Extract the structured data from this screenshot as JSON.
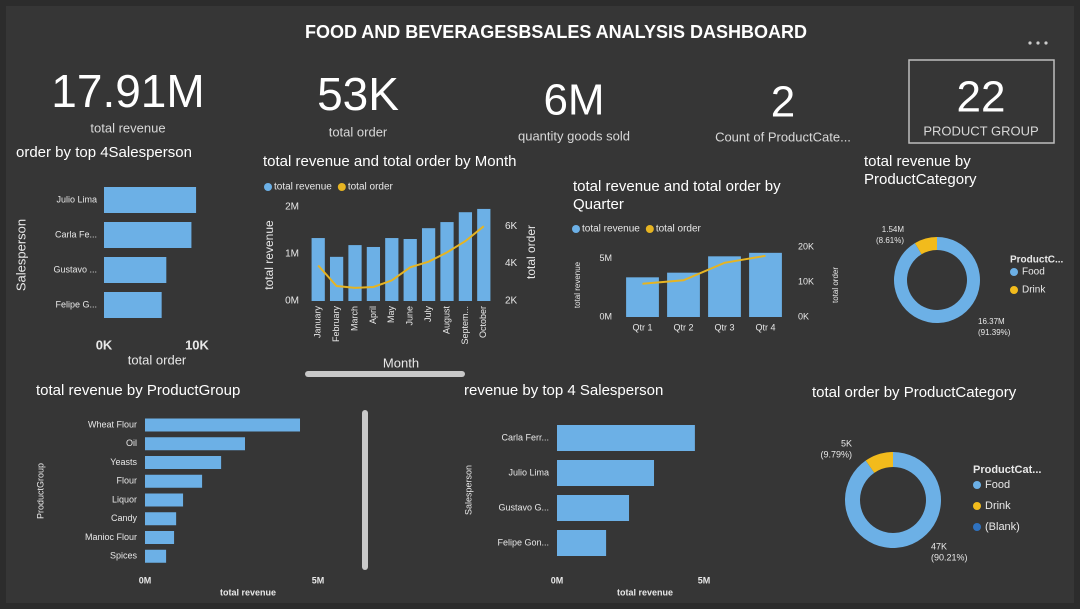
{
  "title": "FOOD AND BEVERAGESBSALES ANALYSIS DASHBOARD",
  "kpis": [
    {
      "value": "17.91M",
      "label": "total revenue"
    },
    {
      "value": "53K",
      "label": "total order"
    },
    {
      "value": "6M",
      "label": "quantity goods sold"
    },
    {
      "value": "2",
      "label": "Count of ProductCate..."
    },
    {
      "value": "22",
      "label": "PRODUCT GROUP"
    }
  ],
  "chart_data": [
    {
      "type": "bar",
      "horizontal": true,
      "title": "order by top 4Salesperson",
      "categories": [
        "Julio Lima",
        "Carla Fe...",
        "Gustavo ...",
        "Felipe G..."
      ],
      "values": [
        9900,
        9400,
        6700,
        6200
      ],
      "color": "#6cb0e6",
      "xlim": [
        0,
        10000
      ],
      "xticks": [
        {
          "value": 0,
          "label": "0K"
        },
        {
          "value": 10000,
          "label": "10K"
        }
      ],
      "x_label": "total order",
      "y_label": "Salesperson"
    },
    {
      "type": "combo",
      "title": "total revenue and total order by Month",
      "categories": [
        "January",
        "February",
        "March",
        "April",
        "May",
        "June",
        "July",
        "August",
        "Septem...",
        "October"
      ],
      "series": [
        {
          "name": "total revenue",
          "kind": "bar",
          "color": "#6cb0e6",
          "values": [
            1340000,
            940000,
            1190000,
            1150000,
            1340000,
            1320000,
            1550000,
            1680000,
            1890000,
            1960000
          ]
        },
        {
          "name": "total order",
          "kind": "line",
          "axis": "y2",
          "color": "#e6b422",
          "values": [
            3900,
            2800,
            2700,
            2750,
            3100,
            3800,
            4100,
            4600,
            5200,
            6000
          ]
        }
      ],
      "ylim": [
        0,
        2150000
      ],
      "yticks": [
        {
          "value": 0,
          "label": "0M"
        },
        {
          "value": 1000000,
          "label": "1M"
        },
        {
          "value": 2000000,
          "label": "2M"
        }
      ],
      "y2lim": [
        2000,
        7400
      ],
      "y2ticks": [
        {
          "value": 2000,
          "label": "2K"
        },
        {
          "value": 4000,
          "label": "4K"
        },
        {
          "value": 6000,
          "label": "6K"
        }
      ],
      "x_label": "Month",
      "y_label": "total revenue",
      "y2_label": "total order"
    },
    {
      "type": "combo",
      "title": "total revenue and total order by Quarter",
      "categories": [
        "Qtr 1",
        "Qtr 2",
        "Qtr 3",
        "Qtr 4"
      ],
      "series": [
        {
          "name": "total revenue",
          "kind": "bar",
          "color": "#6cb0e6",
          "values": [
            3400000,
            3800000,
            5200000,
            5500000
          ]
        },
        {
          "name": "total order",
          "kind": "line",
          "axis": "y2",
          "color": "#e6b422",
          "values": [
            9500,
            10500,
            15500,
            17500
          ]
        }
      ],
      "ylim": [
        0,
        6600000
      ],
      "yticks": [
        {
          "value": 0,
          "label": "0M"
        },
        {
          "value": 5000000,
          "label": "5M"
        }
      ],
      "y2lim": [
        0,
        22000
      ],
      "y2ticks": [
        {
          "value": 0,
          "label": "0K"
        },
        {
          "value": 10000,
          "label": "10K"
        },
        {
          "value": 20000,
          "label": "20K"
        }
      ],
      "y_label": "total revenue",
      "y2_label": "total order"
    },
    {
      "type": "pie",
      "donut": true,
      "title": "total revenue by ProductCategory",
      "legend_title": "ProductC...",
      "categories": [
        "Food",
        "Drink"
      ],
      "values": [
        16370000,
        1540000
      ],
      "value_labels": [
        "16.37M",
        "1.54M"
      ],
      "percent_labels": [
        "(91.39%)",
        "(8.61%)"
      ],
      "colors": [
        "#6cb0e6",
        "#f2bb1c"
      ]
    },
    {
      "type": "bar",
      "horizontal": true,
      "title": "total revenue by ProductGroup",
      "categories": [
        "Wheat Flour",
        "Oil",
        "Yeasts",
        "Flour",
        "Liquor",
        "Candy",
        "Manioc Flour",
        "Spices"
      ],
      "values": [
        4480000,
        2890000,
        2200000,
        1650000,
        1100000,
        900000,
        840000,
        610000
      ],
      "color": "#6cb0e6",
      "xlim": [
        0,
        5000000
      ],
      "xticks": [
        {
          "value": 0,
          "label": "0M"
        },
        {
          "value": 5000000,
          "label": "5M"
        }
      ],
      "x_label": "total revenue",
      "y_label": "ProductGroup"
    },
    {
      "type": "bar",
      "horizontal": true,
      "title": "revenue by top 4 Salesperson",
      "categories": [
        "Carla Ferr...",
        "Julio Lima",
        "Gustavo G...",
        "Felipe Gon..."
      ],
      "values": [
        4690000,
        3300000,
        2450000,
        1670000
      ],
      "color": "#6cb0e6",
      "xlim": [
        0,
        5000000
      ],
      "xticks": [
        {
          "value": 0,
          "label": "0M"
        },
        {
          "value": 5000000,
          "label": "5M"
        }
      ],
      "x_label": "total revenue",
      "y_label": "Salesperson"
    },
    {
      "type": "pie",
      "donut": true,
      "title": "total order by ProductCategory",
      "legend_title": "ProductCat...",
      "categories": [
        "Food",
        "Drink",
        "(Blank)"
      ],
      "values": [
        47000,
        5000,
        null
      ],
      "value_labels": [
        "47K",
        "5K",
        null
      ],
      "percent_labels": [
        "(90.21%)",
        "(9.79%)",
        null
      ],
      "colors": [
        "#6cb0e6",
        "#f2bb1c",
        "#2f72c0"
      ]
    }
  ]
}
